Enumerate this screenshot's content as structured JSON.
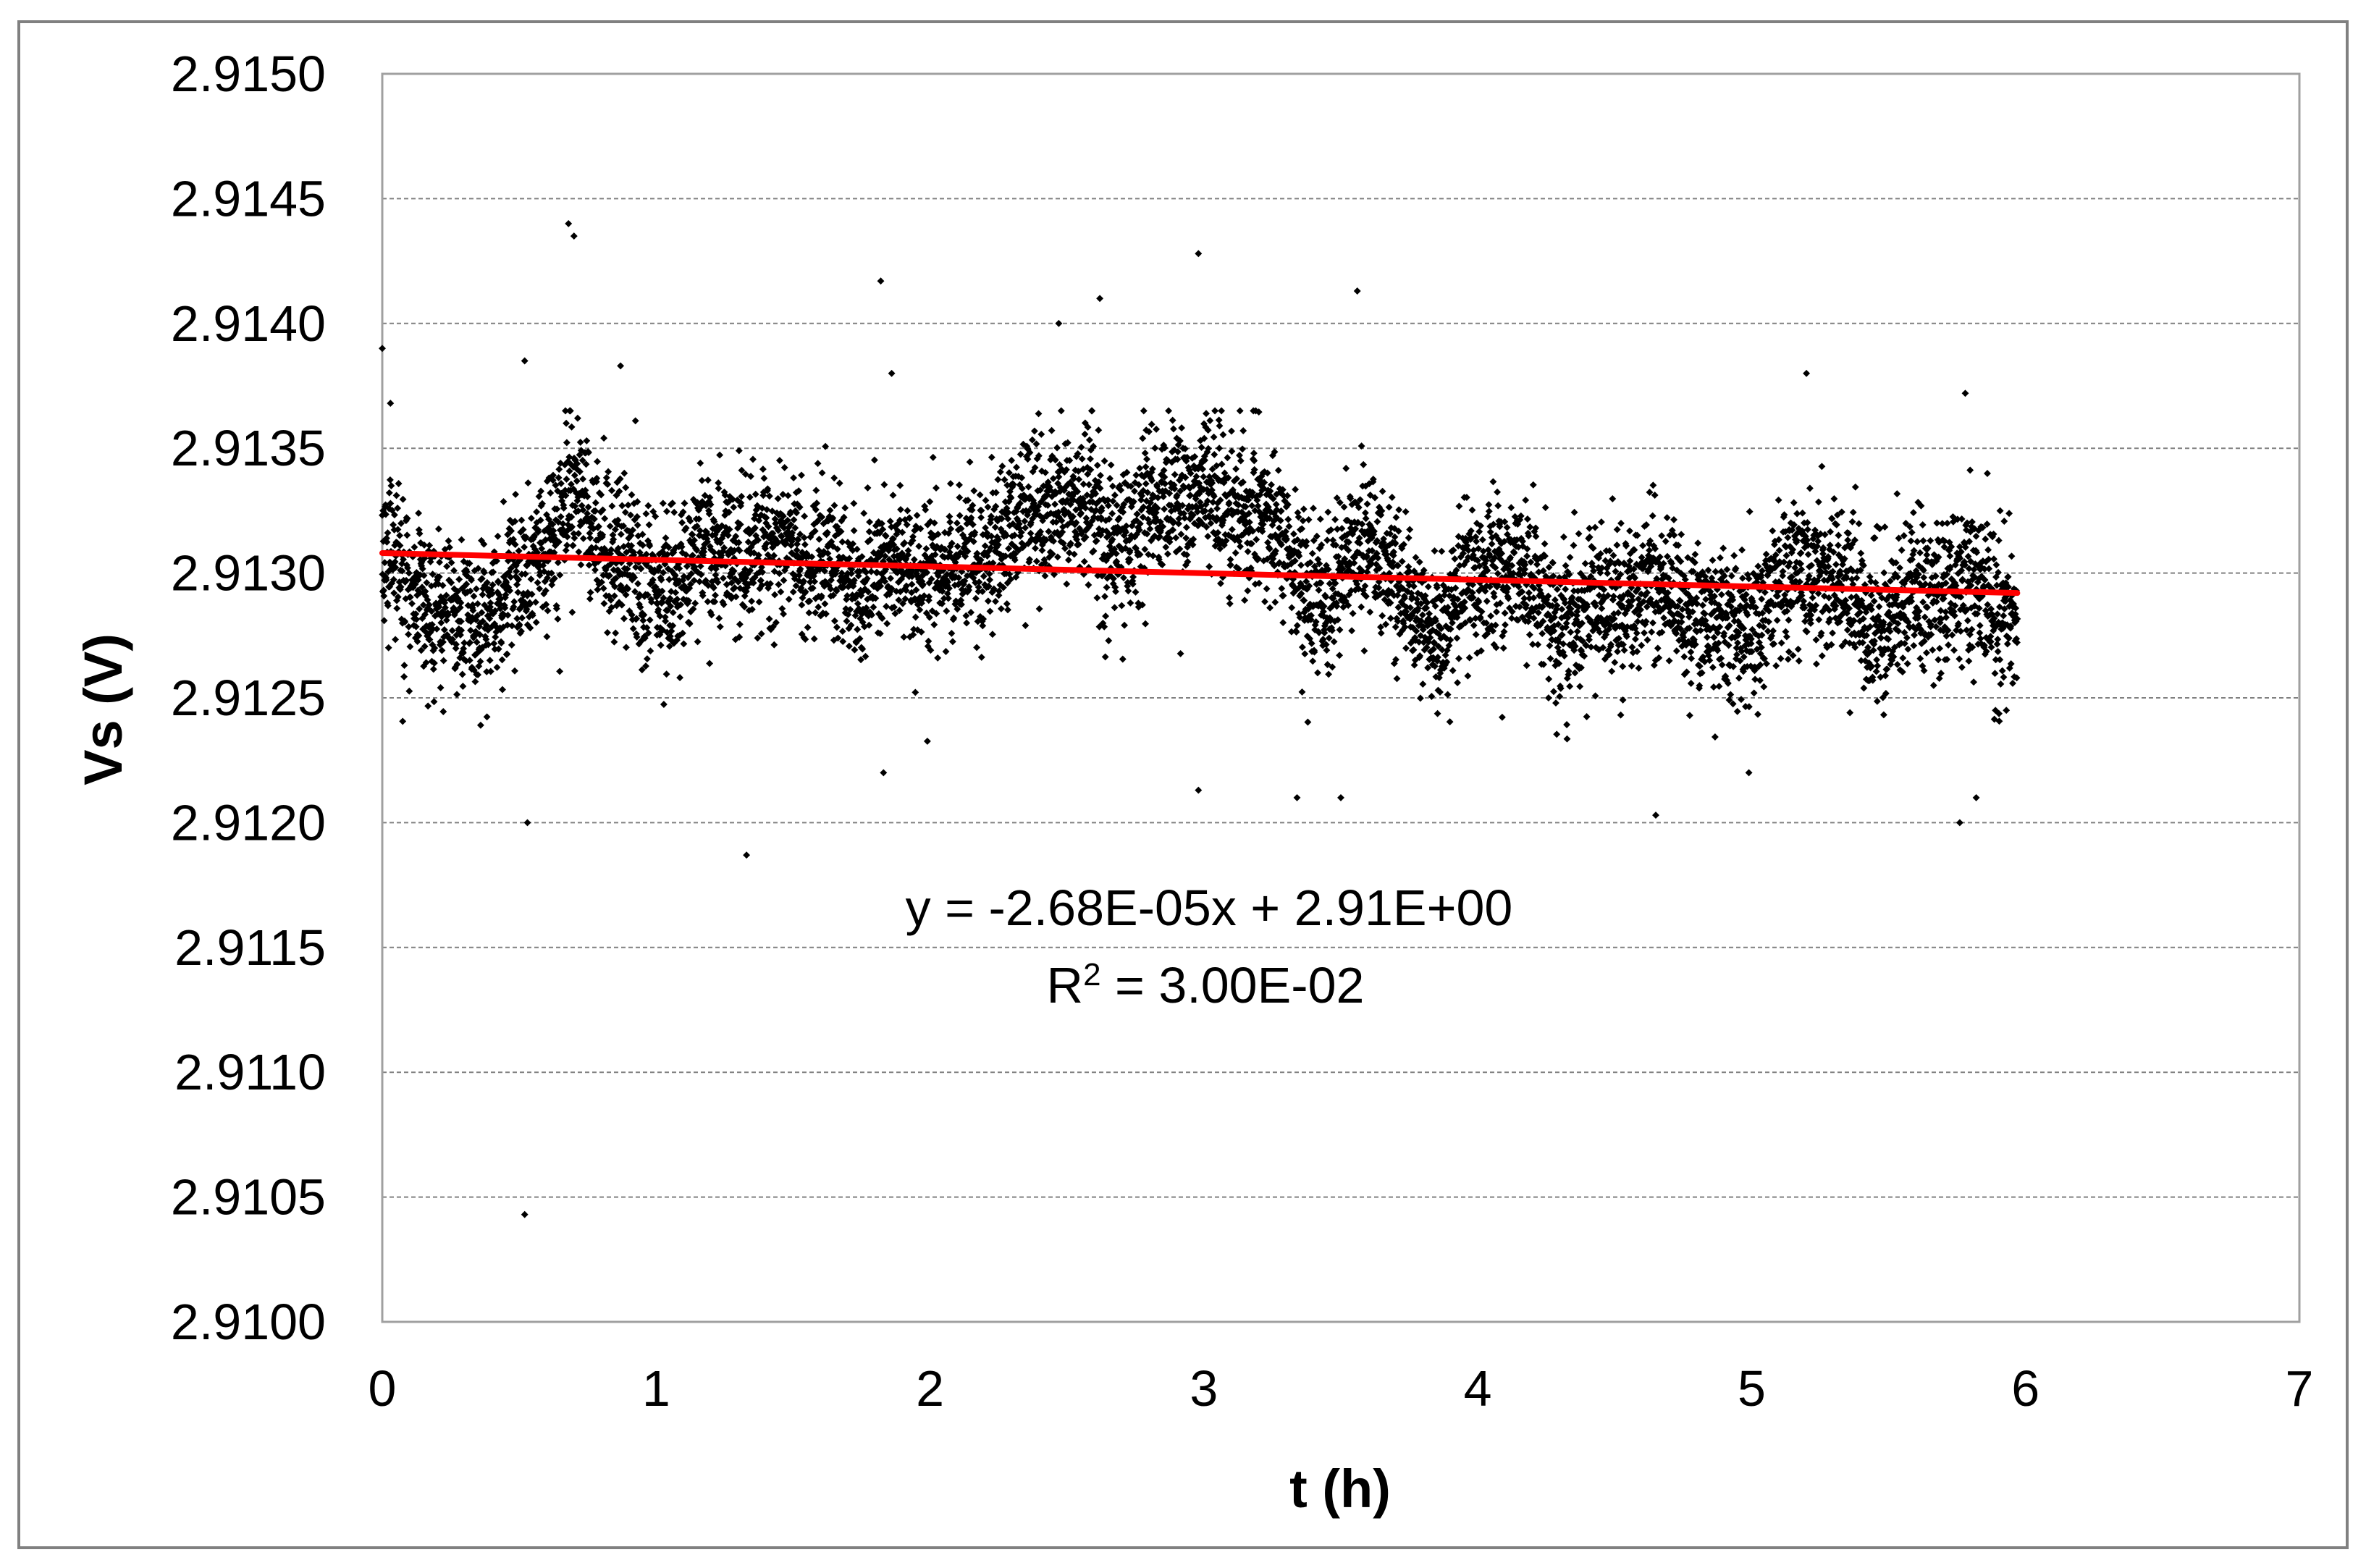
{
  "chart_data": {
    "type": "scatter",
    "title": "",
    "xlabel": "t (h)",
    "ylabel": "Vs  (V)",
    "xlim": [
      0,
      7
    ],
    "ylim": [
      2.91,
      2.915
    ],
    "x_ticks": [
      "0",
      "1",
      "2",
      "3",
      "4",
      "5",
      "6",
      "7"
    ],
    "y_ticks": [
      "2.9100",
      "2.9105",
      "2.9110",
      "2.9115",
      "2.9120",
      "2.9125",
      "2.9130",
      "2.9135",
      "2.9140",
      "2.9145",
      "2.9150"
    ],
    "grid": "horizontal-dashed",
    "legend": "none",
    "colors": {
      "points": "#000000",
      "trendline": "#ff0000",
      "grid": "#808080",
      "frame": "#808080",
      "plot_border": "#a0a0a0"
    },
    "trendline": {
      "type": "linear",
      "x": [
        0,
        5.97
      ],
      "y": [
        2.91308,
        2.91292
      ]
    },
    "annotations": {
      "equation": "y = -2.68E-05x + 2.91E+00",
      "r_squared_label": "R",
      "r_squared_sup": "2",
      "r_squared_value": " = 3.00E-02"
    },
    "series": [
      {
        "x_range": [
          0,
          5.97
        ],
        "trend_profile": {
          "t": [
            0,
            0.2,
            0.45,
            0.7,
            1.0,
            1.3,
            1.5,
            1.75,
            2.0,
            2.3,
            2.5,
            2.75,
            3.0,
            3.2,
            3.45,
            3.6,
            3.85,
            4.1,
            4.4,
            4.7,
            5.0,
            5.25,
            5.5,
            5.75,
            5.97
          ],
          "v": [
            2.91305,
            2.91281,
            2.91293,
            2.91322,
            2.913,
            2.91301,
            2.91318,
            2.9129,
            2.91305,
            2.91312,
            2.9133,
            2.9132,
            2.91327,
            2.9133,
            2.9128,
            2.9132,
            2.91278,
            2.913,
            2.91285,
            2.9129,
            2.9128,
            2.913,
            2.91285,
            2.91288,
            2.91295
          ]
        },
        "noise_sd": 0.00016,
        "n_points": 6000,
        "outliers": {
          "x": [
            0.0,
            0.03,
            0.52,
            0.53,
            0.52,
            0.68,
            0.7,
            0.87,
            1.33,
            1.82,
            1.83,
            1.86,
            2.47,
            2.62,
            2.98,
            2.98,
            3.56,
            3.34,
            3.5,
            4.65,
            4.99,
            5.2,
            5.76,
            5.78,
            5.82,
            5.93
          ],
          "y": [
            2.9139,
            2.91368,
            2.91043,
            2.912,
            2.91385,
            2.9144,
            2.91435,
            2.91383,
            2.91187,
            2.91417,
            2.9122,
            2.9138,
            2.914,
            2.9141,
            2.91428,
            2.91213,
            2.91413,
            2.9121,
            2.9121,
            2.91203,
            2.9122,
            2.9138,
            2.912,
            2.91372,
            2.9121,
            2.91245
          ]
        }
      }
    ]
  }
}
